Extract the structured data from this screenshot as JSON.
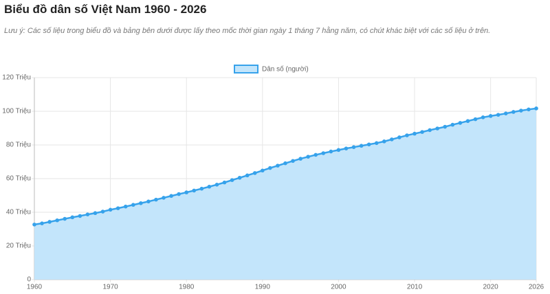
{
  "chart_data": {
    "type": "area",
    "title": "Biểu đồ dân số Việt Nam 1960 - 2026",
    "subtitle": "Lưu ý: Các số liệu trong biểu đồ và bảng bên dưới được lấy theo mốc thời gian ngày 1 tháng 7 hằng năm, có chút khác biệt với các số liệu ở trên.",
    "x": [
      1960,
      1961,
      1962,
      1963,
      1964,
      1965,
      1966,
      1967,
      1968,
      1969,
      1970,
      1971,
      1972,
      1973,
      1974,
      1975,
      1976,
      1977,
      1978,
      1979,
      1980,
      1981,
      1982,
      1983,
      1984,
      1985,
      1986,
      1987,
      1988,
      1989,
      1990,
      1991,
      1992,
      1993,
      1994,
      1995,
      1996,
      1997,
      1998,
      1999,
      2000,
      2001,
      2002,
      2003,
      2004,
      2005,
      2006,
      2007,
      2008,
      2009,
      2010,
      2011,
      2012,
      2013,
      2014,
      2015,
      2016,
      2017,
      2018,
      2019,
      2020,
      2021,
      2022,
      2023,
      2024,
      2025,
      2026
    ],
    "series": [
      {
        "name": "Dân số (người)",
        "color": "#36a2eb",
        "fill": "#c3e5fb",
        "values": [
          32.7,
          33.4,
          34.3,
          35.2,
          36.1,
          37.0,
          37.8,
          38.7,
          39.5,
          40.4,
          41.5,
          42.4,
          43.4,
          44.4,
          45.4,
          46.4,
          47.5,
          48.6,
          49.7,
          50.8,
          51.8,
          52.9,
          54.0,
          55.2,
          56.4,
          57.7,
          59.1,
          60.5,
          61.9,
          63.3,
          64.8,
          66.3,
          67.7,
          69.1,
          70.5,
          71.8,
          73.0,
          74.1,
          75.1,
          76.1,
          77.0,
          77.9,
          78.7,
          79.5,
          80.3,
          81.1,
          82.1,
          83.3,
          84.5,
          85.7,
          86.7,
          87.7,
          88.8,
          89.8,
          90.8,
          92.0,
          93.1,
          94.2,
          95.3,
          96.4,
          97.2,
          97.9,
          98.7,
          99.6,
          100.4,
          101.1,
          101.7
        ]
      }
    ],
    "xlim": [
      1960,
      2026
    ],
    "xticks": [
      1960,
      1970,
      1980,
      1990,
      2000,
      2010,
      2020,
      2026
    ],
    "ylim": [
      0,
      120
    ],
    "yticks": [
      0,
      {
        "value": 20,
        "label": "20 Triệu"
      },
      {
        "value": 40,
        "label": "40 Triệu"
      },
      {
        "value": 60,
        "label": "60 Triệu"
      },
      {
        "value": 80,
        "label": "80 Triệu"
      },
      {
        "value": 100,
        "label": "100 Triệu"
      },
      {
        "value": 120,
        "label": "120 Triệu"
      }
    ],
    "grid": true
  }
}
